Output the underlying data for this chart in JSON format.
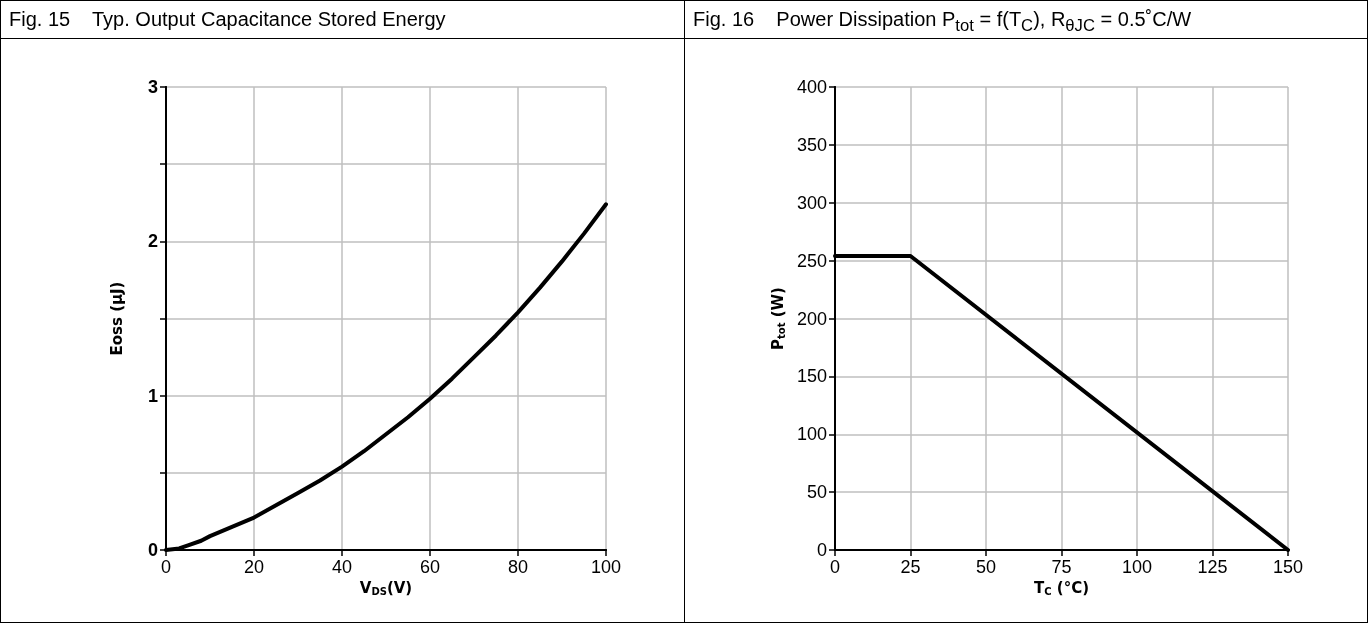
{
  "chart_data": [
    {
      "type": "line",
      "title": "Fig. 15    Typ. Output Capacitance Stored Energy",
      "xlabel": "V$_{DS}$(V)",
      "ylabel": "Eoss (µJ)",
      "x": [
        0,
        3,
        5,
        8,
        10,
        15,
        20,
        25,
        30,
        35,
        40,
        45,
        50,
        55,
        60,
        65,
        70,
        75,
        80,
        85,
        90,
        95,
        100
      ],
      "series": [
        {
          "color": "#000000",
          "values": [
            0,
            0.01,
            0.03,
            0.06,
            0.09,
            0.15,
            0.21,
            0.29,
            0.37,
            0.45,
            0.54,
            0.64,
            0.75,
            0.86,
            0.98,
            1.11,
            1.25,
            1.39,
            1.54,
            1.7,
            1.87,
            2.05,
            2.24
          ]
        }
      ],
      "xlim": [
        0,
        100
      ],
      "xticks": [
        0,
        20,
        40,
        60,
        80,
        100
      ],
      "ylim": [
        0,
        3
      ],
      "yticks": [
        0,
        {
          "value": 0.5,
          "label": null
        },
        1,
        {
          "value": 1.5,
          "label": null
        },
        2,
        {
          "value": 2.5,
          "label": null
        },
        3
      ],
      "grid": true,
      "marker": "none",
      "line_style": "solid"
    },
    {
      "type": "line",
      "title": "Fig. 16    Power Dissipation P$_{tot}$ = f(T$_{C}$), R$_{θJC}$ = 0.5˚C/W",
      "xlabel": "T$_{C}$ (°C)",
      "ylabel": "P$_{tot}$ (W)",
      "x": [
        0,
        25,
        150
      ],
      "series": [
        {
          "color": "#000000",
          "values": [
            254,
            254,
            0
          ]
        }
      ],
      "xlim": [
        0,
        150
      ],
      "xticks": [
        0,
        25,
        50,
        75,
        100,
        125,
        150
      ],
      "ylim": [
        0,
        400
      ],
      "yticks": [
        0,
        50,
        100,
        150,
        200,
        250,
        300,
        350,
        400
      ],
      "grid": true,
      "marker": "none",
      "line_style": "solid"
    }
  ]
}
